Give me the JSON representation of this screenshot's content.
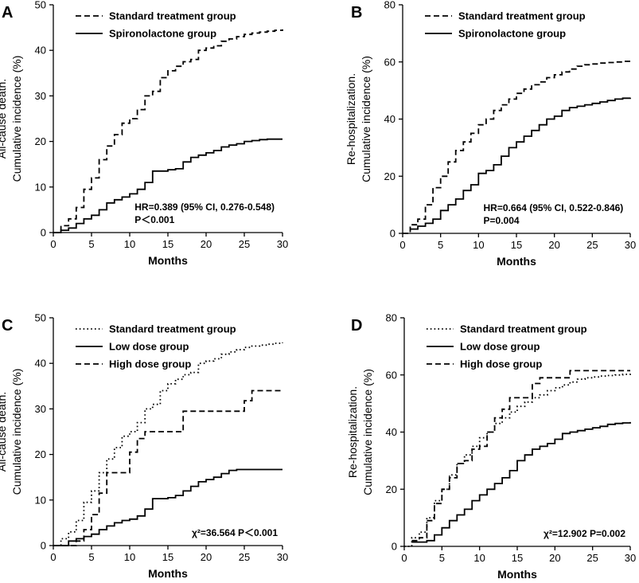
{
  "chart_data": [
    {
      "panel": "A",
      "type": "line",
      "step": true,
      "ylabel_lines": [
        "All-cause death.",
        "Cumulative incidence (%)"
      ],
      "xlabel": "Months",
      "xlim": [
        0,
        30
      ],
      "ylim": [
        0,
        50
      ],
      "xticks": [
        0,
        5,
        10,
        15,
        20,
        25,
        30
      ],
      "yticks": [
        0,
        10,
        20,
        30,
        40,
        50
      ],
      "legend": [
        {
          "label": "Standard treatment group",
          "style": "dashed"
        },
        {
          "label": "Spironolactone group",
          "style": "solid"
        }
      ],
      "annotation_lines": [
        "HR=0.389 (95% CI, 0.276-0.548)",
        "P＜0.001"
      ],
      "series": [
        {
          "name": "Standard treatment group",
          "style": "dashed",
          "x": [
            0,
            1,
            2,
            3,
            4,
            5,
            6,
            7,
            8,
            9,
            10,
            11,
            12,
            13,
            14,
            15,
            16,
            17,
            18,
            19,
            20,
            21,
            22,
            23,
            24,
            25,
            26,
            27,
            28,
            29,
            30
          ],
          "y": [
            0,
            1.5,
            3,
            5.5,
            9.5,
            12,
            16,
            19,
            21.5,
            24,
            25,
            27,
            30,
            31,
            34,
            35.5,
            36.5,
            37.5,
            38,
            40,
            40.5,
            41,
            42,
            42.5,
            43,
            43.5,
            43.8,
            44,
            44.2,
            44.4,
            44.6
          ]
        },
        {
          "name": "Spironolactone group",
          "style": "solid",
          "x": [
            0,
            1,
            2,
            3,
            4,
            5,
            6,
            7,
            8,
            9,
            10,
            11,
            12,
            13,
            14,
            15,
            16,
            17,
            18,
            19,
            20,
            21,
            22,
            23,
            24,
            25,
            26,
            27,
            28,
            29,
            30
          ],
          "y": [
            0,
            0.5,
            1,
            2,
            3,
            3.8,
            5,
            6.5,
            7.2,
            7.8,
            8.5,
            9.5,
            11,
            13.5,
            13.5,
            13.8,
            14,
            15.5,
            16.5,
            17,
            17.5,
            18,
            18.8,
            19.2,
            19.5,
            20,
            20.2,
            20.4,
            20.5,
            20.5,
            20.5
          ]
        }
      ]
    },
    {
      "panel": "B",
      "type": "line",
      "step": true,
      "ylabel_lines": [
        "Re-hospitalization.",
        "Cumulative incidence (%)"
      ],
      "xlabel": "Months",
      "xlim": [
        0,
        30
      ],
      "ylim": [
        0,
        80
      ],
      "xticks": [
        0,
        5,
        10,
        15,
        20,
        25,
        30
      ],
      "yticks": [
        0,
        20,
        40,
        60,
        80
      ],
      "legend": [
        {
          "label": "Standard treatment group",
          "style": "dashed"
        },
        {
          "label": "Spironolactone group",
          "style": "solid"
        }
      ],
      "annotation_lines": [
        "HR=0.664 (95% CI, 0.522-0.846)",
        "P=0.004"
      ],
      "series": [
        {
          "name": "Standard treatment group",
          "style": "dashed",
          "x": [
            0,
            1,
            2,
            3,
            4,
            5,
            6,
            7,
            8,
            9,
            10,
            11,
            12,
            13,
            14,
            15,
            16,
            17,
            18,
            19,
            20,
            21,
            22,
            23,
            24,
            25,
            26,
            27,
            28,
            29,
            30
          ],
          "y": [
            0,
            3,
            5,
            10,
            16,
            20,
            25,
            29,
            32,
            35,
            38,
            40,
            43,
            45,
            47,
            49,
            50.5,
            52,
            53,
            54.5,
            55.5,
            56.5,
            57.5,
            58.5,
            59,
            59.3,
            59.6,
            59.8,
            60,
            60.2,
            60.4
          ]
        },
        {
          "name": "Spironolactone group",
          "style": "solid",
          "x": [
            1,
            2,
            3,
            4,
            5,
            6,
            7,
            8,
            9,
            10,
            11,
            12,
            13,
            14,
            15,
            16,
            17,
            18,
            19,
            20,
            21,
            22,
            23,
            24,
            25,
            26,
            27,
            28,
            29,
            30
          ],
          "y": [
            1.5,
            2.5,
            3.5,
            5,
            8,
            10,
            12,
            15,
            17,
            21,
            22,
            24,
            27,
            30,
            32,
            34,
            36,
            38,
            40,
            41,
            43,
            44,
            44.5,
            45,
            45.5,
            46,
            46.5,
            47,
            47.3,
            47.5
          ]
        }
      ]
    },
    {
      "panel": "C",
      "type": "line",
      "step": true,
      "ylabel_lines": [
        "All-cause death.",
        "Cumulative incidence (%)"
      ],
      "xlabel": "Months",
      "xlim": [
        0,
        30
      ],
      "ylim": [
        0,
        50
      ],
      "xticks": [
        0,
        5,
        10,
        15,
        20,
        25,
        30
      ],
      "yticks": [
        0,
        10,
        20,
        30,
        40,
        50
      ],
      "legend": [
        {
          "label": "Standard treatment group",
          "style": "dotted"
        },
        {
          "label": "Low dose group",
          "style": "solid"
        },
        {
          "label": "High dose group",
          "style": "dashed"
        }
      ],
      "annotation_lines": [
        "χ²=36.564 P＜0.001"
      ],
      "series": [
        {
          "name": "Standard treatment group",
          "style": "dotted",
          "x": [
            0,
            1,
            2,
            3,
            4,
            5,
            6,
            7,
            8,
            9,
            10,
            11,
            12,
            13,
            14,
            15,
            16,
            17,
            18,
            19,
            20,
            21,
            22,
            23,
            24,
            25,
            26,
            27,
            28,
            29,
            30
          ],
          "y": [
            0,
            1.5,
            3,
            5.5,
            9.5,
            12,
            16,
            19,
            21.5,
            24,
            25,
            27,
            30,
            31,
            34,
            35.5,
            36.5,
            37.5,
            38,
            40,
            40.5,
            41,
            42,
            42.5,
            43,
            43.5,
            43.8,
            44,
            44.2,
            44.4,
            44.6
          ]
        },
        {
          "name": "Low dose group",
          "style": "solid",
          "x": [
            0,
            2,
            3,
            4,
            5,
            6,
            7,
            8,
            9,
            10,
            11,
            12,
            13,
            15,
            16,
            17,
            18,
            19,
            20,
            21,
            22,
            23,
            24,
            30
          ],
          "y": [
            0,
            1,
            1.5,
            2,
            2.5,
            3.5,
            4.3,
            5,
            5.5,
            5.8,
            6.5,
            8,
            10.3,
            10.5,
            11,
            12,
            13,
            14,
            14.5,
            15,
            15.8,
            16.5,
            16.7,
            16.7
          ]
        },
        {
          "name": "High dose group",
          "style": "dashed",
          "x": [
            0,
            3,
            4,
            5,
            6,
            7,
            10,
            11,
            12,
            17,
            24,
            25,
            26,
            30
          ],
          "y": [
            0,
            1,
            3.5,
            6.8,
            11.5,
            16,
            20.5,
            23.5,
            25,
            29.5,
            29.5,
            31.8,
            34,
            34
          ]
        }
      ]
    },
    {
      "panel": "D",
      "type": "line",
      "step": true,
      "ylabel_lines": [
        "Re-hospitalization.",
        "Cumulative incidence (%)"
      ],
      "xlabel": "Months",
      "xlim": [
        0,
        30
      ],
      "ylim": [
        0,
        80
      ],
      "xticks": [
        0,
        5,
        10,
        15,
        20,
        25,
        30
      ],
      "yticks": [
        0,
        20,
        40,
        60,
        80
      ],
      "legend": [
        {
          "label": "Standard treatment group",
          "style": "dotted"
        },
        {
          "label": "Low dose group",
          "style": "solid"
        },
        {
          "label": "High dose group",
          "style": "dashed"
        }
      ],
      "annotation_lines": [
        "χ²=12.902 P=0.002"
      ],
      "series": [
        {
          "name": "Standard treatment group",
          "style": "dotted",
          "x": [
            0,
            1,
            2,
            3,
            4,
            5,
            6,
            7,
            8,
            9,
            10,
            11,
            12,
            13,
            14,
            15,
            16,
            17,
            18,
            19,
            20,
            21,
            22,
            23,
            24,
            25,
            26,
            27,
            28,
            29,
            30
          ],
          "y": [
            0,
            3,
            5,
            10,
            16,
            20,
            25,
            29,
            32,
            35,
            38,
            40,
            43,
            45,
            47,
            49,
            50.5,
            52,
            53,
            54.5,
            55.5,
            56.5,
            57.5,
            58.5,
            59,
            59.3,
            59.6,
            59.8,
            60,
            60.2,
            60.4
          ]
        },
        {
          "name": "Low dose group",
          "style": "solid",
          "x": [
            1,
            3,
            4,
            5,
            6,
            7,
            8,
            9,
            10,
            11,
            12,
            13,
            14,
            15,
            16,
            17,
            18,
            19,
            20,
            21,
            22,
            23,
            24,
            25,
            26,
            27,
            28,
            29,
            30
          ],
          "y": [
            1.5,
            2,
            4,
            6.5,
            9,
            11,
            13,
            16,
            18,
            20,
            22,
            24,
            26.5,
            30,
            32,
            34,
            35,
            36,
            37.5,
            39.5,
            40,
            40.5,
            41,
            41.5,
            42,
            42.7,
            43,
            43.2,
            43.5
          ]
        },
        {
          "name": "High dose group",
          "style": "dashed",
          "x": [
            1,
            2,
            3,
            4,
            5,
            6,
            7,
            8,
            9,
            10,
            11,
            12,
            13,
            14,
            15,
            16,
            17,
            18,
            19,
            20,
            21,
            22,
            25,
            30
          ],
          "y": [
            2,
            3,
            9,
            15,
            20,
            24,
            29,
            30,
            34,
            35,
            40,
            45,
            48,
            52,
            52,
            52,
            57,
            59,
            59,
            59,
            59,
            61.5,
            61.5,
            61.5
          ]
        }
      ]
    }
  ]
}
